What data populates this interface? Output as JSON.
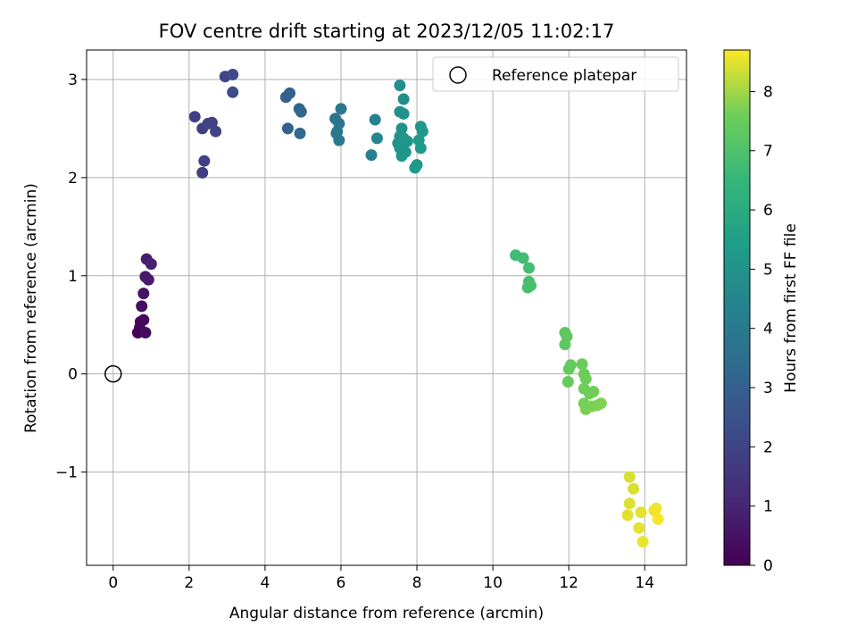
{
  "chart_data": {
    "type": "scatter",
    "title": "FOV centre drift starting at 2023/12/05 11:02:17",
    "xlabel": "Angular distance from reference (arcmin)",
    "ylabel": "Rotation from reference (arcmin)",
    "xlim": [
      -0.7,
      15.1
    ],
    "ylim": [
      -1.95,
      3.3
    ],
    "xticks": [
      0,
      2,
      4,
      6,
      8,
      10,
      12,
      14
    ],
    "xtick_labels": [
      "0",
      "2",
      "4",
      "6",
      "8",
      "10",
      "12",
      "14"
    ],
    "yticks": [
      -1,
      0,
      1,
      2,
      3
    ],
    "ytick_labels": [
      "−1",
      "0",
      "1",
      "2",
      "3"
    ],
    "grid": true,
    "legend": {
      "placement": "top-right",
      "entries": [
        "Reference platepar"
      ]
    },
    "reference_point": {
      "x": 0,
      "y": 0
    },
    "colorbar": {
      "label": "Hours from first FF file",
      "range": [
        0,
        8.7
      ],
      "ticks": [
        0,
        1,
        2,
        3,
        4,
        5,
        6,
        7,
        8
      ],
      "tick_labels": [
        "0",
        "1",
        "2",
        "3",
        "4",
        "5",
        "6",
        "7",
        "8"
      ],
      "colormap": "viridis"
    },
    "points": [
      {
        "x": 0.65,
        "y": 0.42,
        "c": 0.1
      },
      {
        "x": 0.7,
        "y": 0.47,
        "c": 0.15
      },
      {
        "x": 0.72,
        "y": 0.53,
        "c": 0.2
      },
      {
        "x": 0.8,
        "y": 0.55,
        "c": 0.25
      },
      {
        "x": 0.85,
        "y": 0.42,
        "c": 0.3
      },
      {
        "x": 0.75,
        "y": 0.69,
        "c": 0.4
      },
      {
        "x": 0.8,
        "y": 0.82,
        "c": 0.5
      },
      {
        "x": 0.85,
        "y": 0.99,
        "c": 0.6
      },
      {
        "x": 0.93,
        "y": 0.96,
        "c": 0.7
      },
      {
        "x": 0.88,
        "y": 1.17,
        "c": 0.8
      },
      {
        "x": 1.0,
        "y": 1.12,
        "c": 0.9
      },
      {
        "x": 2.15,
        "y": 2.62,
        "c": 1.8
      },
      {
        "x": 2.35,
        "y": 2.5,
        "c": 1.85
      },
      {
        "x": 2.5,
        "y": 2.55,
        "c": 1.9
      },
      {
        "x": 2.6,
        "y": 2.56,
        "c": 1.95
      },
      {
        "x": 2.7,
        "y": 2.47,
        "c": 2.0
      },
      {
        "x": 2.4,
        "y": 2.17,
        "c": 1.9
      },
      {
        "x": 2.35,
        "y": 2.05,
        "c": 1.85
      },
      {
        "x": 2.95,
        "y": 3.03,
        "c": 2.1
      },
      {
        "x": 3.15,
        "y": 3.05,
        "c": 2.2
      },
      {
        "x": 3.15,
        "y": 2.87,
        "c": 2.25
      },
      {
        "x": 4.55,
        "y": 2.82,
        "c": 3.0
      },
      {
        "x": 4.65,
        "y": 2.86,
        "c": 3.05
      },
      {
        "x": 4.6,
        "y": 2.5,
        "c": 3.1
      },
      {
        "x": 4.9,
        "y": 2.7,
        "c": 3.2
      },
      {
        "x": 4.95,
        "y": 2.67,
        "c": 3.25
      },
      {
        "x": 4.92,
        "y": 2.45,
        "c": 3.3
      },
      {
        "x": 5.85,
        "y": 2.6,
        "c": 3.8
      },
      {
        "x": 5.95,
        "y": 2.55,
        "c": 3.85
      },
      {
        "x": 6.0,
        "y": 2.7,
        "c": 3.9
      },
      {
        "x": 5.9,
        "y": 2.47,
        "c": 3.95
      },
      {
        "x": 5.95,
        "y": 2.38,
        "c": 4.0
      },
      {
        "x": 5.88,
        "y": 2.45,
        "c": 3.9
      },
      {
        "x": 6.8,
        "y": 2.23,
        "c": 4.3
      },
      {
        "x": 6.9,
        "y": 2.59,
        "c": 4.4
      },
      {
        "x": 6.95,
        "y": 2.4,
        "c": 4.45
      },
      {
        "x": 7.55,
        "y": 2.94,
        "c": 4.8
      },
      {
        "x": 7.65,
        "y": 2.8,
        "c": 4.85
      },
      {
        "x": 7.55,
        "y": 2.67,
        "c": 4.9
      },
      {
        "x": 7.65,
        "y": 2.65,
        "c": 4.92
      },
      {
        "x": 7.6,
        "y": 2.5,
        "c": 4.95
      },
      {
        "x": 7.55,
        "y": 2.42,
        "c": 5.0
      },
      {
        "x": 7.5,
        "y": 2.35,
        "c": 5.02
      },
      {
        "x": 7.55,
        "y": 2.3,
        "c": 5.05
      },
      {
        "x": 7.6,
        "y": 2.22,
        "c": 5.08
      },
      {
        "x": 7.7,
        "y": 2.26,
        "c": 5.1
      },
      {
        "x": 7.75,
        "y": 2.37,
        "c": 5.12
      },
      {
        "x": 7.65,
        "y": 2.4,
        "c": 5.14
      },
      {
        "x": 7.95,
        "y": 2.1,
        "c": 5.2
      },
      {
        "x": 8.0,
        "y": 2.13,
        "c": 5.22
      },
      {
        "x": 8.1,
        "y": 2.52,
        "c": 5.25
      },
      {
        "x": 8.15,
        "y": 2.47,
        "c": 5.28
      },
      {
        "x": 8.1,
        "y": 2.3,
        "c": 5.3
      },
      {
        "x": 8.05,
        "y": 2.38,
        "c": 5.32
      },
      {
        "x": 10.6,
        "y": 1.21,
        "c": 6.7
      },
      {
        "x": 10.8,
        "y": 1.18,
        "c": 6.75
      },
      {
        "x": 10.95,
        "y": 1.08,
        "c": 6.8
      },
      {
        "x": 10.95,
        "y": 0.94,
        "c": 6.85
      },
      {
        "x": 11.0,
        "y": 0.9,
        "c": 6.88
      },
      {
        "x": 10.92,
        "y": 0.88,
        "c": 6.9
      },
      {
        "x": 11.9,
        "y": 0.42,
        "c": 7.3
      },
      {
        "x": 11.95,
        "y": 0.38,
        "c": 7.32
      },
      {
        "x": 11.9,
        "y": 0.3,
        "c": 7.35
      },
      {
        "x": 12.0,
        "y": 0.05,
        "c": 7.4
      },
      {
        "x": 12.05,
        "y": 0.09,
        "c": 7.42
      },
      {
        "x": 11.98,
        "y": -0.08,
        "c": 7.45
      },
      {
        "x": 12.35,
        "y": 0.1,
        "c": 7.5
      },
      {
        "x": 12.4,
        "y": 0.0,
        "c": 7.52
      },
      {
        "x": 12.45,
        "y": -0.05,
        "c": 7.55
      },
      {
        "x": 12.4,
        "y": -0.15,
        "c": 7.58
      },
      {
        "x": 12.55,
        "y": -0.2,
        "c": 7.6
      },
      {
        "x": 12.65,
        "y": -0.18,
        "c": 7.62
      },
      {
        "x": 12.4,
        "y": -0.3,
        "c": 7.65
      },
      {
        "x": 12.45,
        "y": -0.36,
        "c": 7.68
      },
      {
        "x": 12.6,
        "y": -0.33,
        "c": 7.7
      },
      {
        "x": 12.75,
        "y": -0.32,
        "c": 7.72
      },
      {
        "x": 12.85,
        "y": -0.3,
        "c": 7.75
      },
      {
        "x": 13.6,
        "y": -1.05,
        "c": 8.4
      },
      {
        "x": 13.7,
        "y": -1.17,
        "c": 8.42
      },
      {
        "x": 13.6,
        "y": -1.32,
        "c": 8.45
      },
      {
        "x": 13.55,
        "y": -1.44,
        "c": 8.48
      },
      {
        "x": 13.9,
        "y": -1.41,
        "c": 8.5
      },
      {
        "x": 13.85,
        "y": -1.57,
        "c": 8.52
      },
      {
        "x": 13.95,
        "y": -1.71,
        "c": 8.55
      },
      {
        "x": 14.25,
        "y": -1.39,
        "c": 8.58
      },
      {
        "x": 14.3,
        "y": -1.37,
        "c": 8.6
      },
      {
        "x": 14.35,
        "y": -1.48,
        "c": 8.65
      }
    ]
  }
}
